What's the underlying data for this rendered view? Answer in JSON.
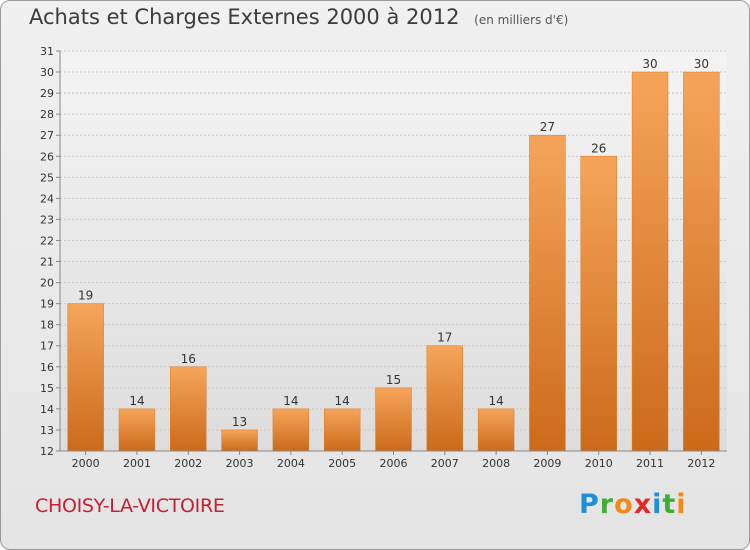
{
  "chart_data": {
    "type": "bar",
    "title": "Achats et Charges Externes 2000 à 2012",
    "subtitle": "(en milliers d'€)",
    "categories": [
      "2000",
      "2001",
      "2002",
      "2003",
      "2004",
      "2005",
      "2006",
      "2007",
      "2008",
      "2009",
      "2010",
      "2011",
      "2012"
    ],
    "values": [
      19,
      14,
      16,
      13,
      14,
      14,
      15,
      17,
      14,
      27,
      26,
      30,
      30
    ],
    "ylim": [
      12,
      31
    ],
    "yticks": [
      12,
      13,
      14,
      15,
      16,
      17,
      18,
      19,
      20,
      21,
      22,
      23,
      24,
      25,
      26,
      27,
      28,
      29,
      30,
      31
    ],
    "grid": true,
    "bar_color": "#f08a2a",
    "bar_color_top": "#f5a55a",
    "bar_color_bottom": "#cc6a1a"
  },
  "location_label": "CHOISY-LA-VICTOIRE",
  "logo": {
    "letters": [
      "P",
      "r",
      "o",
      "x",
      "i",
      "t",
      "i"
    ],
    "colors": [
      "#1f8fd6",
      "#3fae35",
      "#f28a1b",
      "#e02a2a",
      "#1f8fd6",
      "#3fae35",
      "#f28a1b"
    ]
  }
}
